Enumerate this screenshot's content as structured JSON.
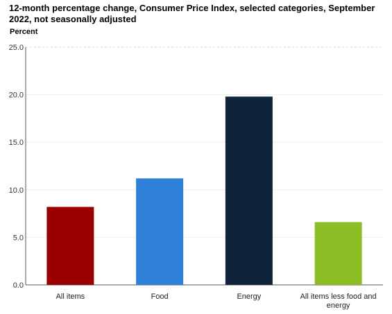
{
  "chart_data": {
    "type": "bar",
    "title": "12-month percentage change, Consumer Price Index, selected categories, September 2022, not seasonally adjusted",
    "ylabel": "Percent",
    "xlabel": "",
    "ylim": [
      0,
      25
    ],
    "yticks": [
      0.0,
      5.0,
      10.0,
      15.0,
      20.0,
      25.0
    ],
    "ytick_labels": [
      "0.0",
      "5.0",
      "10.0",
      "15.0",
      "20.0",
      "25.0"
    ],
    "grid": true,
    "legend": "none",
    "categories": [
      [
        "All items"
      ],
      [
        "Food"
      ],
      [
        "Energy"
      ],
      [
        "All items less food and",
        "energy"
      ]
    ],
    "values": [
      8.2,
      11.2,
      19.8,
      6.6
    ],
    "colors": [
      "#9b0000",
      "#2f80d8",
      "#0f233b",
      "#8dbd25"
    ]
  }
}
